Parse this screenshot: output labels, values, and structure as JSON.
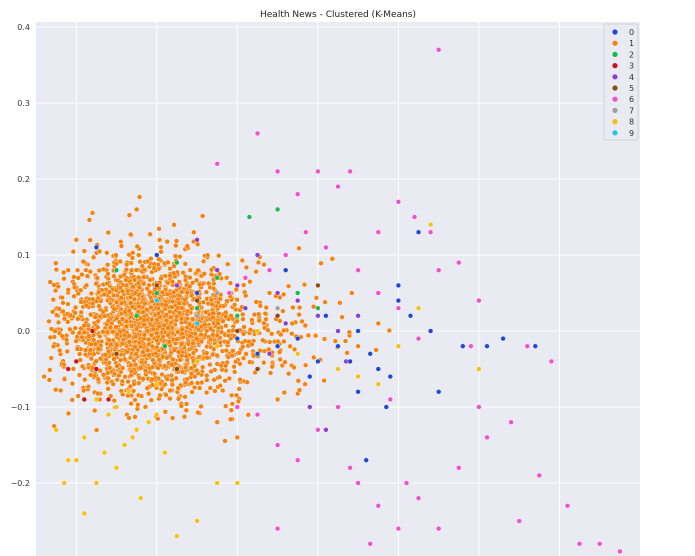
{
  "chart_data": {
    "type": "scatter",
    "title": "Health News - Clustered (K-Means)",
    "xlabel": "",
    "ylabel": "",
    "ylim": [
      -0.29,
      0.4
    ],
    "xlim": [
      -0.5,
      1.0
    ],
    "y_ticks": [
      "0.4",
      "0.3",
      "0.2",
      "0.1",
      "0.0",
      "−0.1",
      "−0.2"
    ],
    "grid": true,
    "legend_position": "top-right",
    "series": [
      {
        "name": "0",
        "color": "#1f48d6",
        "points": [
          [
            0.56,
            -0.02
          ],
          [
            0.62,
            -0.02
          ],
          [
            0.66,
            -0.01
          ],
          [
            0.74,
            -0.02
          ],
          [
            0.48,
            0.0
          ],
          [
            0.43,
            0.02
          ],
          [
            0.4,
            0.04
          ],
          [
            0.4,
            0.06
          ],
          [
            0.35,
            -0.05
          ],
          [
            0.3,
            -0.08
          ],
          [
            0.38,
            -0.06
          ],
          [
            0.33,
            -0.03
          ],
          [
            0.25,
            -0.02
          ],
          [
            0.2,
            -0.04
          ],
          [
            0.15,
            -0.01
          ],
          [
            0.1,
            -0.02
          ],
          [
            0.05,
            -0.03
          ],
          [
            0.0,
            -0.01
          ],
          [
            -0.1,
            0.05
          ],
          [
            -0.2,
            0.1
          ],
          [
            -0.35,
            0.11
          ],
          [
            0.12,
            0.08
          ],
          [
            0.45,
            0.13
          ],
          [
            0.32,
            -0.17
          ],
          [
            0.28,
            -0.04
          ],
          [
            0.22,
            0.02
          ],
          [
            0.3,
            0.0
          ],
          [
            0.37,
            -0.1
          ],
          [
            0.5,
            -0.08
          ],
          [
            0.18,
            -0.06
          ]
        ]
      },
      {
        "name": "1",
        "color": "#f5820d",
        "points": []
      },
      {
        "name": "2",
        "color": "#1ab94a",
        "points": [
          [
            -0.15,
            0.09
          ],
          [
            -0.05,
            0.07
          ],
          [
            0.03,
            0.15
          ],
          [
            0.1,
            0.16
          ],
          [
            -0.2,
            0.05
          ],
          [
            -0.25,
            0.02
          ],
          [
            -0.1,
            0.03
          ],
          [
            0.0,
            0.02
          ],
          [
            0.15,
            0.05
          ],
          [
            0.2,
            0.03
          ],
          [
            -0.3,
            0.08
          ],
          [
            -0.18,
            -0.02
          ]
        ]
      },
      {
        "name": "3",
        "color": "#c9121b",
        "points": [
          [
            -0.4,
            -0.04
          ],
          [
            -0.38,
            -0.09
          ],
          [
            -0.35,
            -0.05
          ],
          [
            -0.32,
            -0.09
          ],
          [
            -0.42,
            -0.05
          ],
          [
            -0.36,
            0.0
          ]
        ]
      },
      {
        "name": "4",
        "color": "#8b3fd0",
        "points": [
          [
            0.05,
            0.1
          ],
          [
            0.1,
            0.05
          ],
          [
            0.15,
            0.04
          ],
          [
            0.2,
            0.02
          ],
          [
            0.25,
            0.0
          ],
          [
            0.0,
            0.06
          ],
          [
            -0.05,
            0.08
          ],
          [
            -0.1,
            0.12
          ],
          [
            0.08,
            -0.03
          ],
          [
            0.18,
            -0.1
          ],
          [
            0.22,
            -0.13
          ],
          [
            0.3,
            0.02
          ],
          [
            -0.15,
            0.06
          ],
          [
            0.12,
            0.01
          ],
          [
            0.02,
            0.03
          ],
          [
            0.27,
            -0.04
          ]
        ]
      },
      {
        "name": "5",
        "color": "#8b4a12",
        "points": [
          [
            -0.2,
            0.06
          ],
          [
            -0.1,
            0.04
          ],
          [
            0.0,
            0.0
          ],
          [
            0.1,
            0.02
          ],
          [
            -0.3,
            -0.03
          ],
          [
            -0.15,
            -0.05
          ],
          [
            0.05,
            -0.05
          ],
          [
            0.2,
            0.06
          ]
        ]
      },
      {
        "name": "6",
        "color": "#f150c8",
        "points": [
          [
            0.5,
            0.37
          ],
          [
            0.05,
            0.26
          ],
          [
            -0.05,
            0.22
          ],
          [
            0.1,
            0.21
          ],
          [
            0.2,
            0.21
          ],
          [
            0.28,
            0.21
          ],
          [
            0.15,
            0.18
          ],
          [
            0.25,
            0.19
          ],
          [
            0.4,
            0.17
          ],
          [
            0.48,
            0.13
          ],
          [
            0.55,
            0.09
          ],
          [
            0.6,
            0.04
          ],
          [
            0.72,
            -0.02
          ],
          [
            0.78,
            -0.04
          ],
          [
            0.7,
            -0.25
          ],
          [
            0.6,
            -0.1
          ],
          [
            0.55,
            -0.18
          ],
          [
            0.62,
            -0.14
          ],
          [
            0.68,
            -0.12
          ],
          [
            0.75,
            -0.19
          ],
          [
            0.82,
            -0.23
          ],
          [
            0.85,
            -0.28
          ],
          [
            0.95,
            -0.29
          ],
          [
            0.9,
            -0.28
          ],
          [
            0.5,
            -0.26
          ],
          [
            0.45,
            -0.22
          ],
          [
            0.4,
            -0.26
          ],
          [
            0.35,
            -0.23
          ],
          [
            0.33,
            -0.28
          ],
          [
            0.3,
            -0.2
          ],
          [
            0.25,
            -0.1
          ],
          [
            0.2,
            -0.13
          ],
          [
            0.15,
            -0.17
          ],
          [
            0.1,
            -0.15
          ],
          [
            0.05,
            -0.11
          ],
          [
            0.0,
            -0.1
          ],
          [
            0.1,
            -0.26
          ],
          [
            0.3,
            0.08
          ],
          [
            0.35,
            0.05
          ],
          [
            0.4,
            0.03
          ],
          [
            0.45,
            -0.01
          ],
          [
            0.5,
            0.08
          ],
          [
            0.35,
            0.13
          ],
          [
            0.22,
            0.11
          ],
          [
            0.17,
            0.13
          ],
          [
            0.12,
            0.1
          ],
          [
            0.08,
            0.08
          ],
          [
            0.02,
            0.07
          ],
          [
            -0.02,
            0.05
          ],
          [
            0.38,
            -0.09
          ],
          [
            0.42,
            -0.2
          ],
          [
            0.28,
            -0.18
          ],
          [
            0.58,
            -0.02
          ],
          [
            0.44,
            0.15
          ]
        ]
      },
      {
        "name": "7",
        "color": "#a0a0a0",
        "points": [
          [
            -0.1,
            0.02
          ],
          [
            -0.05,
            0.05
          ],
          [
            0.1,
            0.03
          ]
        ]
      },
      {
        "name": "8",
        "color": "#f4c20d",
        "points": [
          [
            -0.45,
            -0.13
          ],
          [
            -0.43,
            -0.2
          ],
          [
            -0.4,
            -0.17
          ],
          [
            -0.38,
            -0.24
          ],
          [
            -0.35,
            -0.2
          ],
          [
            -0.3,
            -0.18
          ],
          [
            -0.28,
            -0.15
          ],
          [
            -0.25,
            -0.13
          ],
          [
            -0.22,
            -0.12
          ],
          [
            -0.2,
            -0.11
          ],
          [
            -0.18,
            -0.16
          ],
          [
            -0.15,
            -0.27
          ],
          [
            -0.1,
            -0.25
          ],
          [
            -0.05,
            -0.2
          ],
          [
            0.0,
            -0.2
          ],
          [
            -0.3,
            -0.1
          ],
          [
            -0.32,
            -0.11
          ],
          [
            -0.35,
            -0.09
          ],
          [
            -0.27,
            -0.08
          ],
          [
            -0.2,
            -0.07
          ],
          [
            -0.15,
            -0.05
          ],
          [
            -0.1,
            -0.04
          ],
          [
            -0.05,
            -0.02
          ],
          [
            0.0,
            -0.01
          ],
          [
            0.05,
            0.0
          ],
          [
            0.1,
            -0.02
          ],
          [
            0.15,
            -0.03
          ],
          [
            0.2,
            -0.04
          ],
          [
            0.25,
            -0.05
          ],
          [
            0.3,
            -0.06
          ],
          [
            0.35,
            -0.07
          ],
          [
            0.4,
            -0.02
          ],
          [
            0.45,
            0.03
          ],
          [
            0.48,
            0.14
          ],
          [
            0.6,
            -0.05
          ],
          [
            -0.38,
            -0.14
          ],
          [
            -0.33,
            -0.16
          ],
          [
            -0.26,
            -0.14
          ],
          [
            -0.42,
            -0.17
          ],
          [
            -0.24,
            -0.22
          ]
        ]
      },
      {
        "name": "9",
        "color": "#19c7f0",
        "points": [
          [
            -0.2,
            0.04
          ],
          [
            -0.1,
            0.01
          ]
        ]
      }
    ]
  }
}
